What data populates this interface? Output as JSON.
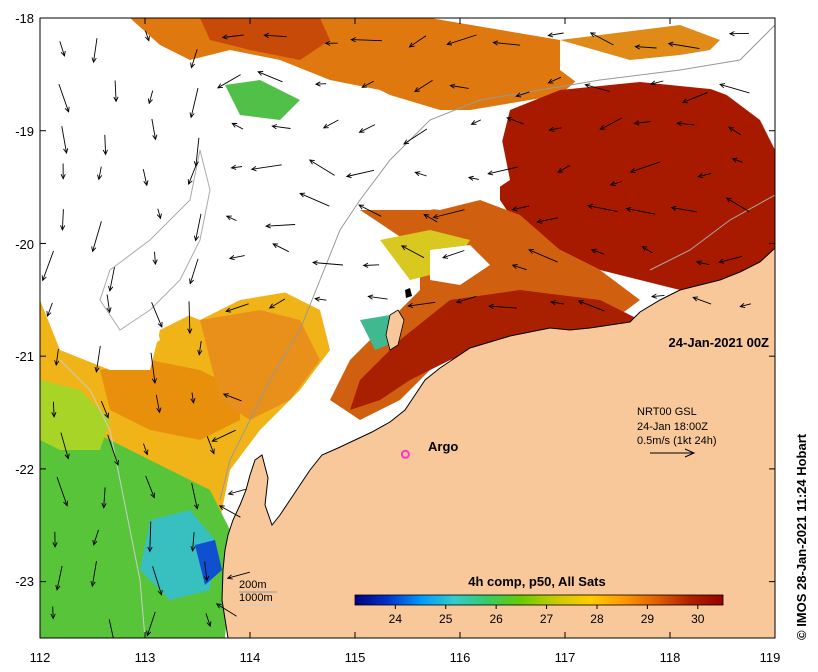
{
  "map": {
    "lon_range": [
      112,
      119
    ],
    "lat_range": [
      -23.5,
      -18
    ],
    "lon_ticks": [
      "112",
      "113",
      "114",
      "115",
      "116",
      "117",
      "118",
      "119"
    ],
    "lat_ticks": [
      "-18",
      "-19",
      "-20",
      "-21",
      "-22",
      "-23"
    ],
    "lat_tick_values": [
      -18,
      -19,
      -20,
      -21,
      -22,
      -23
    ],
    "land_color": "#f8c89a",
    "water_color": "#ffffff"
  },
  "date_label": "24-Jan-2021 00Z",
  "current_legend": {
    "line1": "NRT00 GSL",
    "line2": "24-Jan 18:00Z",
    "line3": "0.5m/s (1kt 24h)"
  },
  "argo": {
    "label": "Argo",
    "lon": 115.48,
    "lat": -21.87,
    "marker_color": "#ff33cc"
  },
  "isobaths": {
    "line1": "200m",
    "line2": "1000m"
  },
  "colorbar": {
    "title": "4h comp, p50, All Sats",
    "min": 23.2,
    "max": 30.5,
    "ticks": [
      "24",
      "25",
      "26",
      "27",
      "28",
      "29",
      "30"
    ],
    "tick_values": [
      24,
      25,
      26,
      27,
      28,
      29,
      30
    ],
    "colors": [
      "#00007f",
      "#0033cc",
      "#0099ff",
      "#33cccc",
      "#33cc66",
      "#66cc00",
      "#cccc00",
      "#ffcc00",
      "#ff9900",
      "#e06000",
      "#b02000",
      "#990000"
    ]
  },
  "credit": "© IMOS 28-Jan-2021 11:24 Hobart"
}
